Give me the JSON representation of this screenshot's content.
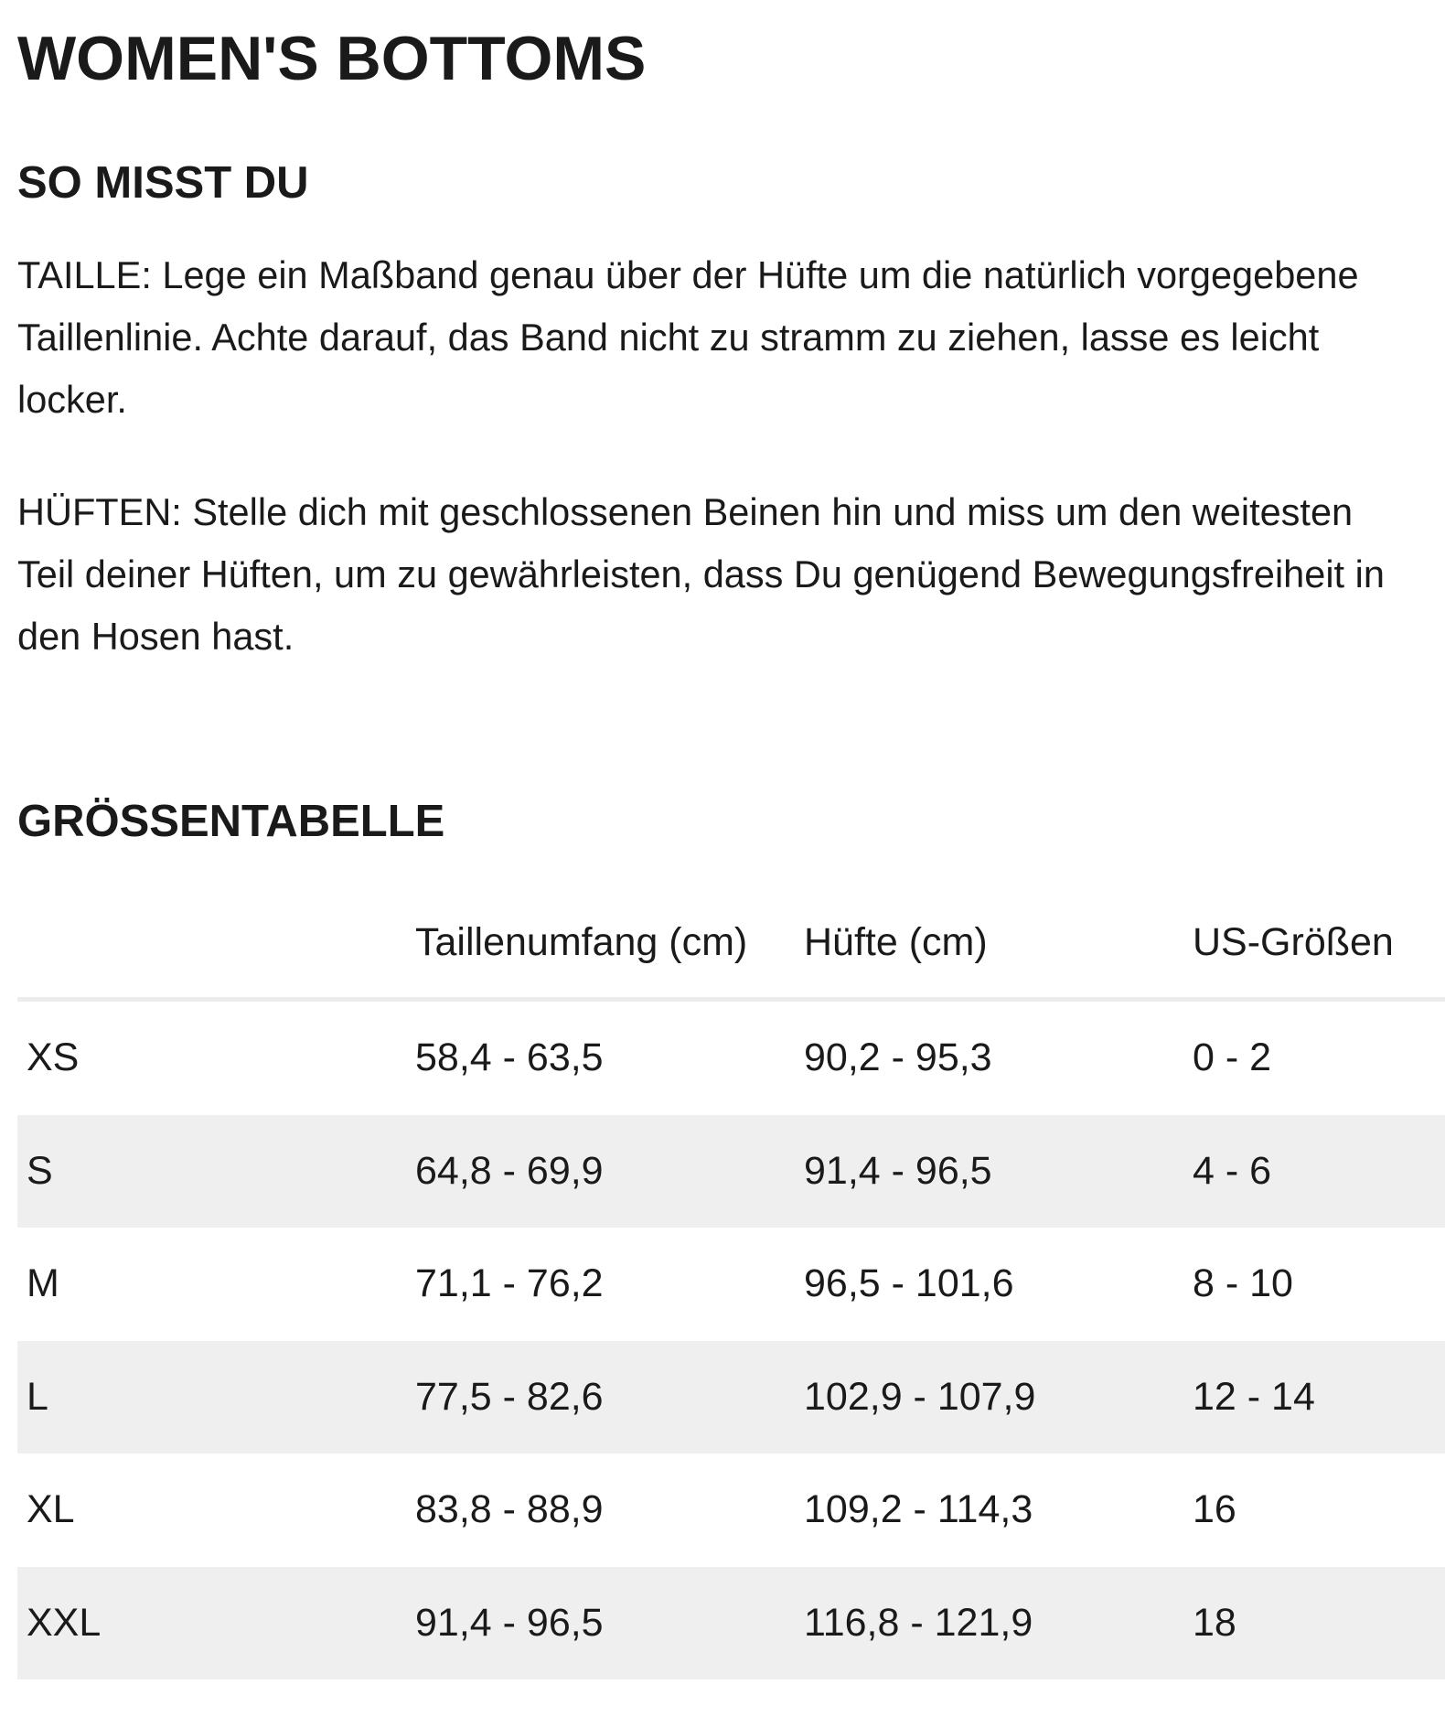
{
  "title": "WOMEN'S BOTTOMS",
  "measure": {
    "heading": "SO MISST DU",
    "paragraphs": [
      "TAILLE: Lege ein Maßband genau über der Hüfte um die natürlich vorgegebene Taillenlinie. Achte darauf, das Band nicht zu stramm zu ziehen, lasse es leicht locker.",
      "HÜFTEN: Stelle dich mit geschlossenen Beinen hin und miss um den weitesten Teil deiner Hüften, um zu gewährleisten, dass Du genügend Bewegungsfreiheit in den Hosen hast."
    ]
  },
  "size_chart": {
    "heading": "GRÖSSENTABELLE",
    "header": [
      "Taillenumfang (cm)",
      "Hüfte (cm)",
      "US-Größen"
    ],
    "rows": [
      [
        "XS",
        "58,4 - 63,5",
        "90,2 - 95,3",
        "0 - 2"
      ],
      [
        "S",
        "64,8 - 69,9",
        "91,4 - 96,5",
        "4 - 6"
      ],
      [
        "M",
        "71,1 - 76,2",
        "96,5 - 101,6",
        "8 - 10"
      ],
      [
        "L",
        "77,5 - 82,6",
        "102,9 - 107,9",
        "12 - 14"
      ],
      [
        "XL",
        "83,8 - 88,9",
        "109,2 - 114,3",
        "16"
      ],
      [
        "XXL",
        "91,4 - 96,5",
        "116,8 - 121,9",
        "18"
      ]
    ]
  }
}
